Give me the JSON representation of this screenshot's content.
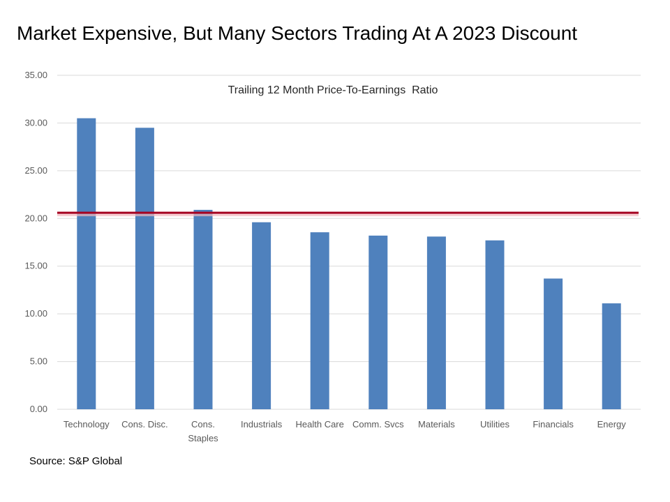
{
  "slide": {
    "title": "Market Expensive, But Many Sectors Trading At A 2023 Discount",
    "source": "Source: S&P Global"
  },
  "chart_data": {
    "type": "bar",
    "title": "Trailing 12 Month Price-To-Earnings  Ratio",
    "categories": [
      "Technology",
      "Cons. Disc.",
      "Cons.\nStaples",
      "Industrials",
      "Health Care",
      "Comm. Svcs",
      "Materials",
      "Utilities",
      "Financials",
      "Energy"
    ],
    "values": [
      30.5,
      29.5,
      20.9,
      19.6,
      18.55,
      18.2,
      18.1,
      17.7,
      13.7,
      11.1
    ],
    "reference_line": 20.6,
    "ylim": [
      0,
      35
    ],
    "yticks": [
      "0.00",
      "5.00",
      "10.00",
      "15.00",
      "20.00",
      "25.00",
      "30.00",
      "35.00"
    ],
    "ytick_values": [
      0,
      5,
      10,
      15,
      20,
      25,
      30,
      35
    ],
    "xlabel": "",
    "ylabel": "",
    "grid": true,
    "colors": {
      "bar": "#4F81BD",
      "reference": "#A50021",
      "reference_glow": "#F2B8BE",
      "grid": "#D9D9D9",
      "axis": "#D9D9D9"
    }
  }
}
